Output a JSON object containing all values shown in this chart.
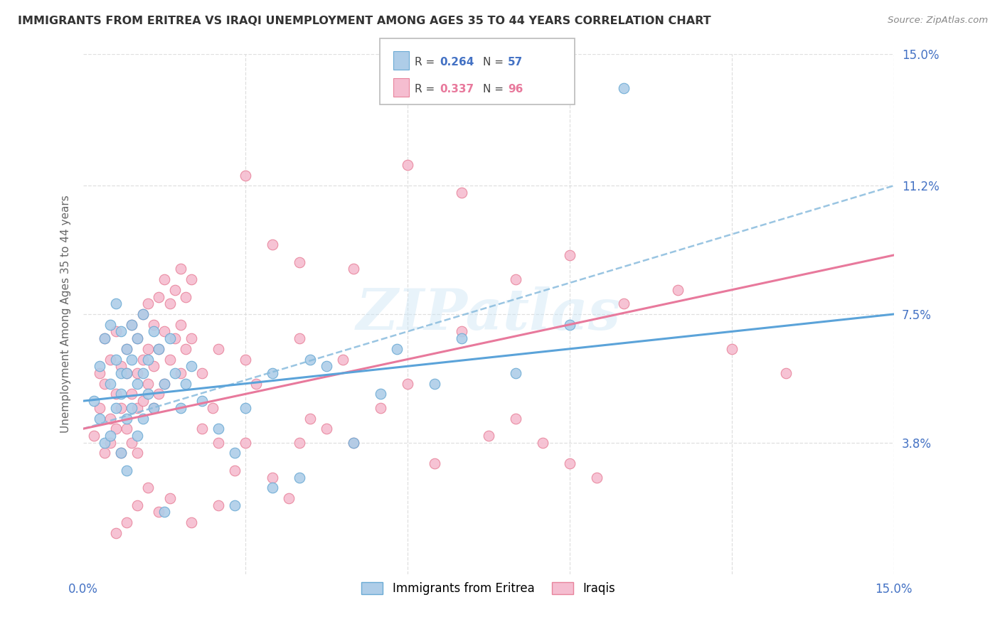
{
  "title": "IMMIGRANTS FROM ERITREA VS IRAQI UNEMPLOYMENT AMONG AGES 35 TO 44 YEARS CORRELATION CHART",
  "source": "Source: ZipAtlas.com",
  "ylabel": "Unemployment Among Ages 35 to 44 years",
  "xlim": [
    0.0,
    0.15
  ],
  "ylim": [
    0.0,
    0.15
  ],
  "ytick_labels_right": [
    "3.8%",
    "7.5%",
    "11.2%",
    "15.0%"
  ],
  "ytick_vals_right": [
    0.038,
    0.075,
    0.112,
    0.15
  ],
  "color_eritrea": "#aecde8",
  "color_eritrea_edge": "#6aaad4",
  "color_iraqis": "#f5bdd0",
  "color_iraqis_edge": "#e8849c",
  "color_line_eritrea": "#5ba3d9",
  "color_line_iraqis": "#e8799c",
  "color_line_dashed": "#88bbdd",
  "watermark": "ZIPatlas",
  "background_color": "#ffffff",
  "grid_color": "#d8d8d8",
  "scatter_eritrea_x": [
    0.002,
    0.003,
    0.003,
    0.004,
    0.004,
    0.005,
    0.005,
    0.005,
    0.006,
    0.006,
    0.006,
    0.007,
    0.007,
    0.007,
    0.007,
    0.008,
    0.008,
    0.008,
    0.008,
    0.009,
    0.009,
    0.009,
    0.01,
    0.01,
    0.01,
    0.011,
    0.011,
    0.011,
    0.012,
    0.012,
    0.013,
    0.013,
    0.014,
    0.015,
    0.016,
    0.017,
    0.018,
    0.019,
    0.02,
    0.022,
    0.025,
    0.028,
    0.03,
    0.035,
    0.04,
    0.045,
    0.05,
    0.058,
    0.065,
    0.07,
    0.08,
    0.09,
    0.1,
    0.035,
    0.042,
    0.055,
    0.028,
    0.015
  ],
  "scatter_eritrea_y": [
    0.05,
    0.045,
    0.06,
    0.038,
    0.068,
    0.055,
    0.072,
    0.04,
    0.062,
    0.078,
    0.048,
    0.058,
    0.07,
    0.052,
    0.035,
    0.065,
    0.045,
    0.058,
    0.03,
    0.072,
    0.048,
    0.062,
    0.055,
    0.068,
    0.04,
    0.075,
    0.058,
    0.045,
    0.062,
    0.052,
    0.07,
    0.048,
    0.065,
    0.055,
    0.068,
    0.058,
    0.048,
    0.055,
    0.06,
    0.05,
    0.042,
    0.035,
    0.048,
    0.058,
    0.028,
    0.06,
    0.038,
    0.065,
    0.055,
    0.068,
    0.058,
    0.072,
    0.14,
    0.025,
    0.062,
    0.052,
    0.02,
    0.018
  ],
  "scatter_iraqis_x": [
    0.002,
    0.003,
    0.003,
    0.004,
    0.004,
    0.004,
    0.005,
    0.005,
    0.005,
    0.006,
    0.006,
    0.006,
    0.007,
    0.007,
    0.007,
    0.008,
    0.008,
    0.008,
    0.009,
    0.009,
    0.009,
    0.01,
    0.01,
    0.01,
    0.01,
    0.011,
    0.011,
    0.011,
    0.012,
    0.012,
    0.012,
    0.013,
    0.013,
    0.013,
    0.014,
    0.014,
    0.014,
    0.015,
    0.015,
    0.015,
    0.016,
    0.016,
    0.017,
    0.017,
    0.018,
    0.018,
    0.018,
    0.019,
    0.019,
    0.02,
    0.02,
    0.022,
    0.022,
    0.024,
    0.025,
    0.025,
    0.028,
    0.03,
    0.03,
    0.032,
    0.035,
    0.038,
    0.04,
    0.04,
    0.042,
    0.045,
    0.048,
    0.05,
    0.055,
    0.06,
    0.065,
    0.07,
    0.075,
    0.08,
    0.085,
    0.09,
    0.095,
    0.01,
    0.012,
    0.008,
    0.006,
    0.014,
    0.016,
    0.02,
    0.025,
    0.03,
    0.035,
    0.04,
    0.05,
    0.06,
    0.07,
    0.08,
    0.09,
    0.1,
    0.11,
    0.12,
    0.13
  ],
  "scatter_iraqis_y": [
    0.04,
    0.048,
    0.058,
    0.035,
    0.055,
    0.068,
    0.045,
    0.062,
    0.038,
    0.052,
    0.07,
    0.042,
    0.06,
    0.048,
    0.035,
    0.065,
    0.058,
    0.042,
    0.072,
    0.052,
    0.038,
    0.068,
    0.058,
    0.048,
    0.035,
    0.075,
    0.062,
    0.05,
    0.078,
    0.065,
    0.055,
    0.072,
    0.06,
    0.048,
    0.08,
    0.065,
    0.052,
    0.085,
    0.07,
    0.055,
    0.078,
    0.062,
    0.082,
    0.068,
    0.088,
    0.072,
    0.058,
    0.08,
    0.065,
    0.085,
    0.068,
    0.042,
    0.058,
    0.048,
    0.065,
    0.038,
    0.03,
    0.062,
    0.038,
    0.055,
    0.028,
    0.022,
    0.068,
    0.038,
    0.045,
    0.042,
    0.062,
    0.038,
    0.048,
    0.055,
    0.032,
    0.07,
    0.04,
    0.045,
    0.038,
    0.032,
    0.028,
    0.02,
    0.025,
    0.015,
    0.012,
    0.018,
    0.022,
    0.015,
    0.02,
    0.115,
    0.095,
    0.09,
    0.088,
    0.118,
    0.11,
    0.085,
    0.092,
    0.078,
    0.082,
    0.065,
    0.058
  ],
  "trendline_eritrea": [
    0.0,
    0.15,
    0.05,
    0.075
  ],
  "trendline_iraqis": [
    0.0,
    0.15,
    0.042,
    0.092
  ],
  "trendline_dashed": [
    0.0,
    0.15,
    0.042,
    0.112
  ]
}
